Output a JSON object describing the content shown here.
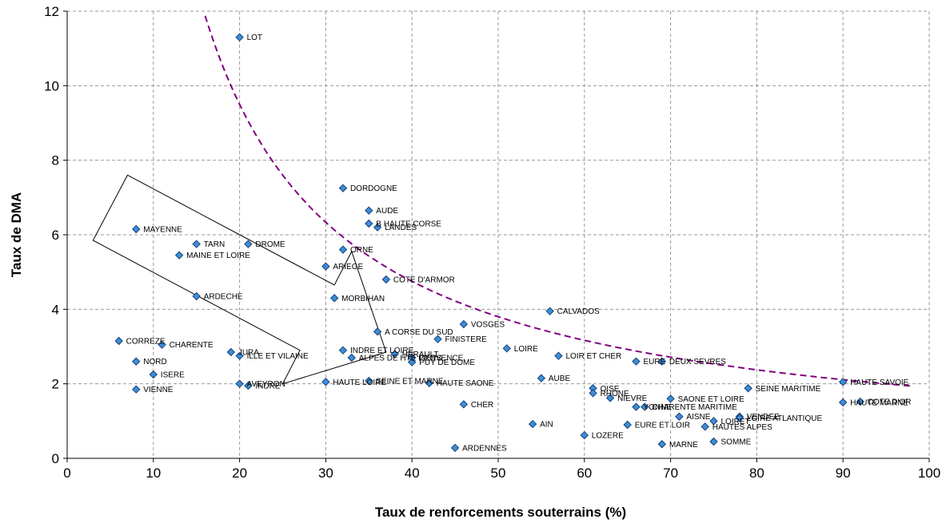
{
  "chart_data": {
    "type": "scatter",
    "xlabel": "Taux de renforcements souterrains (%)",
    "ylabel": "Taux de DMA",
    "xlim": [
      0,
      100
    ],
    "ylim": [
      0,
      12
    ],
    "x_ticks": [
      "0",
      "10",
      "20",
      "30",
      "40",
      "50",
      "60",
      "70",
      "80",
      "90",
      "100"
    ],
    "y_ticks": [
      "0",
      "2",
      "4",
      "6",
      "8",
      "10",
      "12"
    ],
    "grid": true,
    "grid_style": "dashed",
    "point_color": "#3a8fd6",
    "point_edge_color": "#1a3d7a",
    "curve_color": "#800080",
    "curve_style": "dashed",
    "points": [
      {
        "label": "LOT",
        "x": 20,
        "y": 11.3
      },
      {
        "label": "DORDOGNE",
        "x": 32,
        "y": 7.25
      },
      {
        "label": "AUDE",
        "x": 35,
        "y": 6.65
      },
      {
        "label": "B HAUTE CORSE",
        "x": 35,
        "y": 6.3
      },
      {
        "label": "LANDES",
        "x": 36,
        "y": 6.2
      },
      {
        "label": "MAYENNE",
        "x": 8,
        "y": 6.15
      },
      {
        "label": "TARN",
        "x": 15,
        "y": 5.75
      },
      {
        "label": "DROME",
        "x": 21,
        "y": 5.75
      },
      {
        "label": "ORNE",
        "x": 32,
        "y": 5.6
      },
      {
        "label": "MAINE ET LOIRE",
        "x": 13,
        "y": 5.45
      },
      {
        "label": "ARIEGE",
        "x": 30,
        "y": 5.15
      },
      {
        "label": "COTE D'ARMOR",
        "x": 37,
        "y": 4.8
      },
      {
        "label": "ARDECHE",
        "x": 15,
        "y": 4.35
      },
      {
        "label": "MORBIHAN",
        "x": 31,
        "y": 4.3
      },
      {
        "label": "CALVADOS",
        "x": 56,
        "y": 3.95
      },
      {
        "label": "VOSGES",
        "x": 46,
        "y": 3.6
      },
      {
        "label": "A CORSE DU SUD",
        "x": 36,
        "y": 3.4
      },
      {
        "label": "FINISTERE",
        "x": 43,
        "y": 3.2
      },
      {
        "label": "CORREZE",
        "x": 6,
        "y": 3.15
      },
      {
        "label": "CHARENTE",
        "x": 11,
        "y": 3.05
      },
      {
        "label": "LOIRE",
        "x": 51,
        "y": 2.95
      },
      {
        "label": "JURA",
        "x": 19,
        "y": 2.85
      },
      {
        "label": "INDRE ET LOIRE",
        "x": 32,
        "y": 2.9
      },
      {
        "label": "HERAULT",
        "x": 38,
        "y": 2.8
      },
      {
        "label": "LOIR ET CHER",
        "x": 57,
        "y": 2.75
      },
      {
        "label": "ILLE ET VILAINE",
        "x": 20,
        "y": 2.75
      },
      {
        "label": "ALPES DE HTE PROVENCE",
        "x": 33,
        "y": 2.7
      },
      {
        "label": "GERS",
        "x": 40,
        "y": 2.7
      },
      {
        "label": "PUY DE DOME",
        "x": 40,
        "y": 2.58
      },
      {
        "label": "EURE",
        "x": 66,
        "y": 2.6
      },
      {
        "label": "DEUX SEVRES",
        "x": 69,
        "y": 2.6
      },
      {
        "label": "NORD",
        "x": 8,
        "y": 2.6
      },
      {
        "label": "ISERE",
        "x": 10,
        "y": 2.25
      },
      {
        "label": "AUBE",
        "x": 55,
        "y": 2.15
      },
      {
        "label": "HAUTE SAVOIE",
        "x": 90,
        "y": 2.05
      },
      {
        "label": "HAUTE LOIRE",
        "x": 30,
        "y": 2.05
      },
      {
        "label": "SEINE ET MARNE",
        "x": 35,
        "y": 2.08
      },
      {
        "label": "HAUTE SAONE",
        "x": 42,
        "y": 2.02
      },
      {
        "label": "AVEYRON",
        "x": 20,
        "y": 2.0
      },
      {
        "label": "INDRE",
        "x": 21,
        "y": 1.95
      },
      {
        "label": "VIENNE",
        "x": 8,
        "y": 1.85
      },
      {
        "label": "SEINE MARITIME",
        "x": 79,
        "y": 1.88
      },
      {
        "label": "OISE",
        "x": 61,
        "y": 1.88
      },
      {
        "label": "RHONE",
        "x": 61,
        "y": 1.75
      },
      {
        "label": "NIEVRE",
        "x": 63,
        "y": 1.62
      },
      {
        "label": "SAONE ET LOIRE",
        "x": 70,
        "y": 1.6
      },
      {
        "label": "HAUTE MARNE",
        "x": 90,
        "y": 1.5
      },
      {
        "label": "COTE D'OR",
        "x": 92,
        "y": 1.52
      },
      {
        "label": "CHER",
        "x": 46,
        "y": 1.45
      },
      {
        "label": "YONNE",
        "x": 66,
        "y": 1.38
      },
      {
        "label": "CHARENTE MARITIME",
        "x": 67,
        "y": 1.38
      },
      {
        "label": "AISNE",
        "x": 71,
        "y": 1.12
      },
      {
        "label": "VENDEE",
        "x": 78,
        "y": 1.12
      },
      {
        "label": "LOIRE ATLANTIQUE",
        "x": 78,
        "y": 1.08
      },
      {
        "label": "LOIRET",
        "x": 75,
        "y": 1.0
      },
      {
        "label": "AIN",
        "x": 54,
        "y": 0.92
      },
      {
        "label": "EURE ET LOIR",
        "x": 65,
        "y": 0.9
      },
      {
        "label": "HAUTES ALPES",
        "x": 74,
        "y": 0.85
      },
      {
        "label": "LOZERE",
        "x": 60,
        "y": 0.62
      },
      {
        "label": "SOMME",
        "x": 75,
        "y": 0.45
      },
      {
        "label": "MARNE",
        "x": 69,
        "y": 0.38
      },
      {
        "label": "ARDENNES",
        "x": 45,
        "y": 0.28
      }
    ],
    "polygon": [
      [
        7,
        7.6
      ],
      [
        31,
        4.65
      ],
      [
        33,
        5.55
      ],
      [
        37,
        2.85
      ],
      [
        25,
        2.0
      ],
      [
        27,
        2.9
      ],
      [
        3,
        5.85
      ]
    ],
    "curve": {
      "k": 190,
      "x_start": 16,
      "x_end": 98
    }
  }
}
